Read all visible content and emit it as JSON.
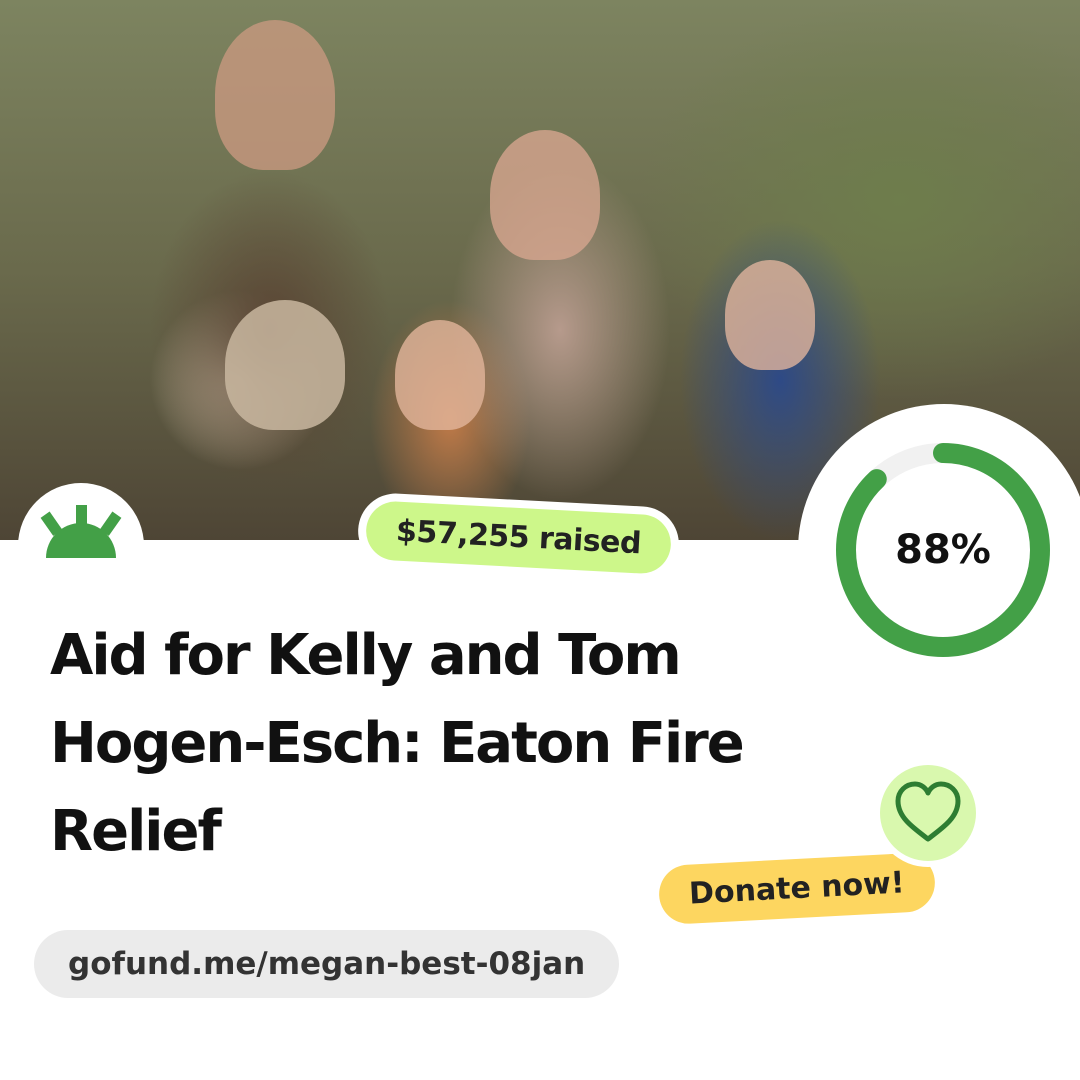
{
  "campaign": {
    "raised_label": "$57,255 raised",
    "progress_percent": 88,
    "progress_label": "88%",
    "title": "Aid for Kelly and Tom Hogen-Esch: Eaton Fire Relief",
    "donate_label": "Donate now!",
    "url": "gofund.me/megan-best-08jan"
  },
  "icons": {
    "logo": "gofundme-sun-logo",
    "heart": "heart-icon"
  },
  "colors": {
    "brand_green": "#43a047",
    "raised_badge": "#cdf78a",
    "donate_badge": "#fdd660",
    "heart_circle": "#d9f8ae",
    "ring_track": "#f1f1f1"
  }
}
